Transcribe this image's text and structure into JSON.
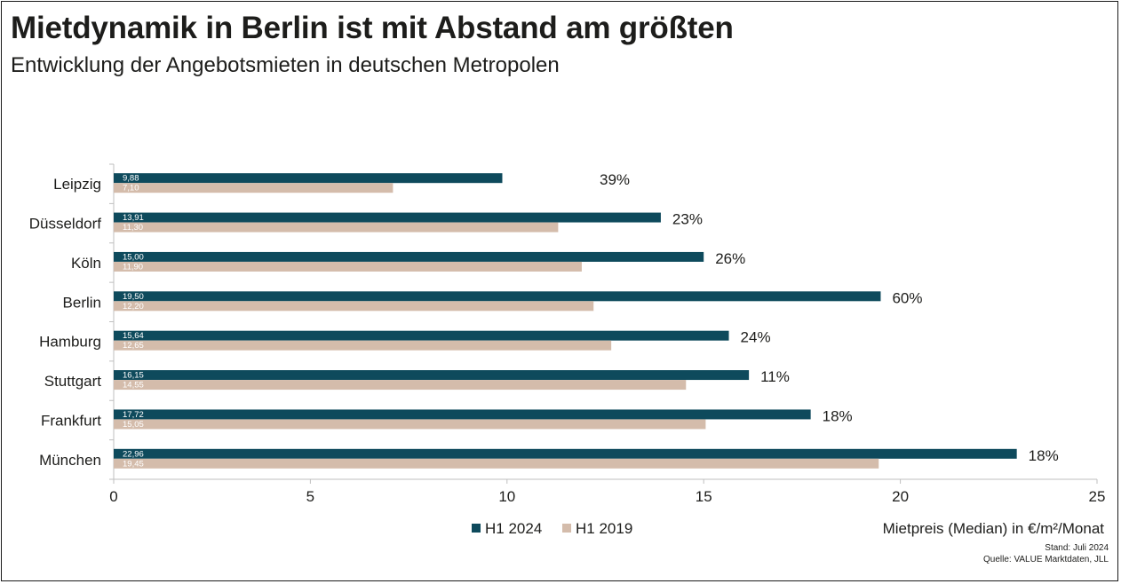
{
  "header": {
    "title": "Mietdynamik in Berlin ist mit Abstand am größten",
    "subtitle": "Entwicklung der Angebotsmieten in deutschen Metropolen"
  },
  "footer": {
    "stand": "Stand: Juli 2024",
    "quelle": "Quelle: VALUE Marktdaten, JLL"
  },
  "colors": {
    "h1_2024": "#0e4a5c",
    "h1_2019": "#d4bcab",
    "text": "#1d1d1b"
  },
  "chart_data": {
    "type": "bar",
    "orientation": "horizontal",
    "xlabel": "Mietpreis (Median) in €/m²/Monat",
    "xlim": [
      0,
      25
    ],
    "xticks": [
      "0",
      "5",
      "10",
      "15",
      "20",
      "25"
    ],
    "grid": false,
    "legend_position": "bottom-left",
    "categories": [
      "Leipzig",
      "Düsseldorf",
      "Köln",
      "Berlin",
      "Hamburg",
      "Stuttgart",
      "Frankfurt",
      "München"
    ],
    "series": [
      {
        "name": "H1 2024",
        "values": [
          9.88,
          13.91,
          15.0,
          19.5,
          15.64,
          16.15,
          17.72,
          22.96
        ],
        "labels": [
          "9,88",
          "13,91",
          "15,00",
          "19,50",
          "15,64",
          "16,15",
          "17,72",
          "22,96"
        ]
      },
      {
        "name": "H1 2019",
        "values": [
          7.1,
          11.3,
          11.9,
          12.2,
          12.65,
          14.55,
          15.05,
          19.45
        ],
        "labels": [
          "7,10",
          "11,30",
          "11,90",
          "12,20",
          "12,65",
          "14,55",
          "15,05",
          "19,45"
        ]
      }
    ],
    "change_labels": [
      "39%",
      "23%",
      "26%",
      "60%",
      "24%",
      "11%",
      "18%",
      "18%"
    ]
  }
}
